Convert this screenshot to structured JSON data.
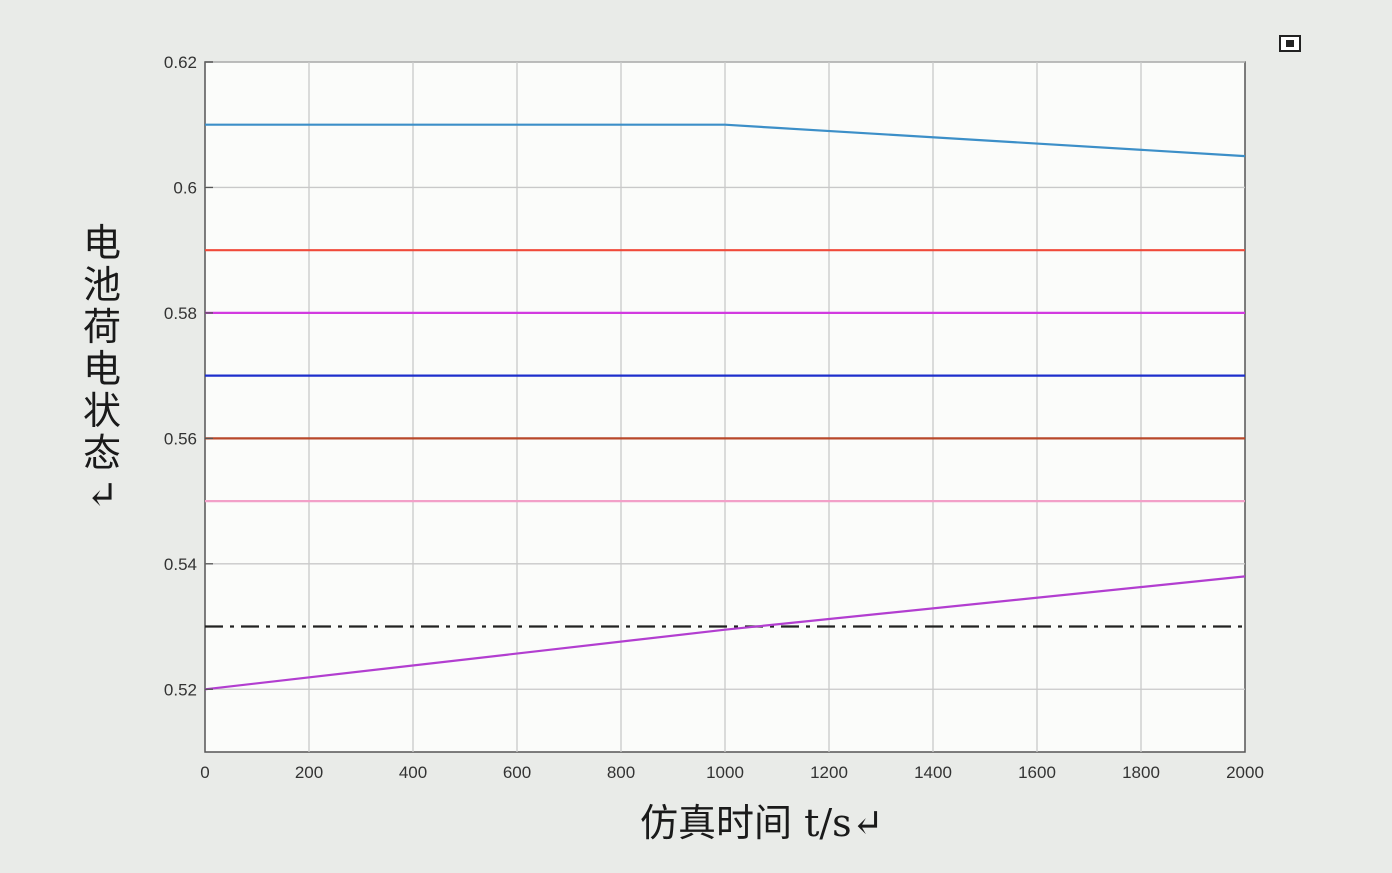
{
  "chart_data": {
    "type": "line",
    "xlabel": "仿真时间 t/s↵",
    "ylabel": "电池荷电状态↵",
    "xlim": [
      0,
      2000
    ],
    "ylim": [
      0.51,
      0.62
    ],
    "x_ticks": [
      "0",
      "200",
      "400",
      "600",
      "800",
      "1000",
      "1200",
      "1400",
      "1600",
      "1800",
      "2000"
    ],
    "y_ticks": [
      "0.52",
      "0.54",
      "0.56",
      "0.58",
      "0.6",
      "0.62"
    ],
    "grid": true,
    "series": [
      {
        "color": "#3c8fc8",
        "style": "solid",
        "x": [
          0,
          1000,
          1100,
          2000
        ],
        "y": [
          0.61,
          0.61,
          0.6095,
          0.605
        ]
      },
      {
        "color": "#f04a3a",
        "style": "solid",
        "x": [
          0,
          2000
        ],
        "y": [
          0.59,
          0.59
        ]
      },
      {
        "color": "#d23ae0",
        "style": "solid",
        "x": [
          0,
          2000
        ],
        "y": [
          0.58,
          0.58
        ]
      },
      {
        "color": "#1e2fcc",
        "style": "solid",
        "x": [
          0,
          2000
        ],
        "y": [
          0.57,
          0.57
        ]
      },
      {
        "color": "#b8482a",
        "style": "solid",
        "x": [
          0,
          2000
        ],
        "y": [
          0.56,
          0.56
        ]
      },
      {
        "color": "#f2a0c8",
        "style": "solid",
        "x": [
          0,
          2000
        ],
        "y": [
          0.55,
          0.55
        ]
      },
      {
        "color": "#222222",
        "style": "dashdot",
        "x": [
          0,
          2000
        ],
        "y": [
          0.53,
          0.53
        ]
      },
      {
        "color": "#b23ed0",
        "style": "solid",
        "x": [
          0,
          1000,
          2000
        ],
        "y": [
          0.52,
          0.5295,
          0.538
        ]
      }
    ]
  },
  "figure_icon": "expand-icon"
}
